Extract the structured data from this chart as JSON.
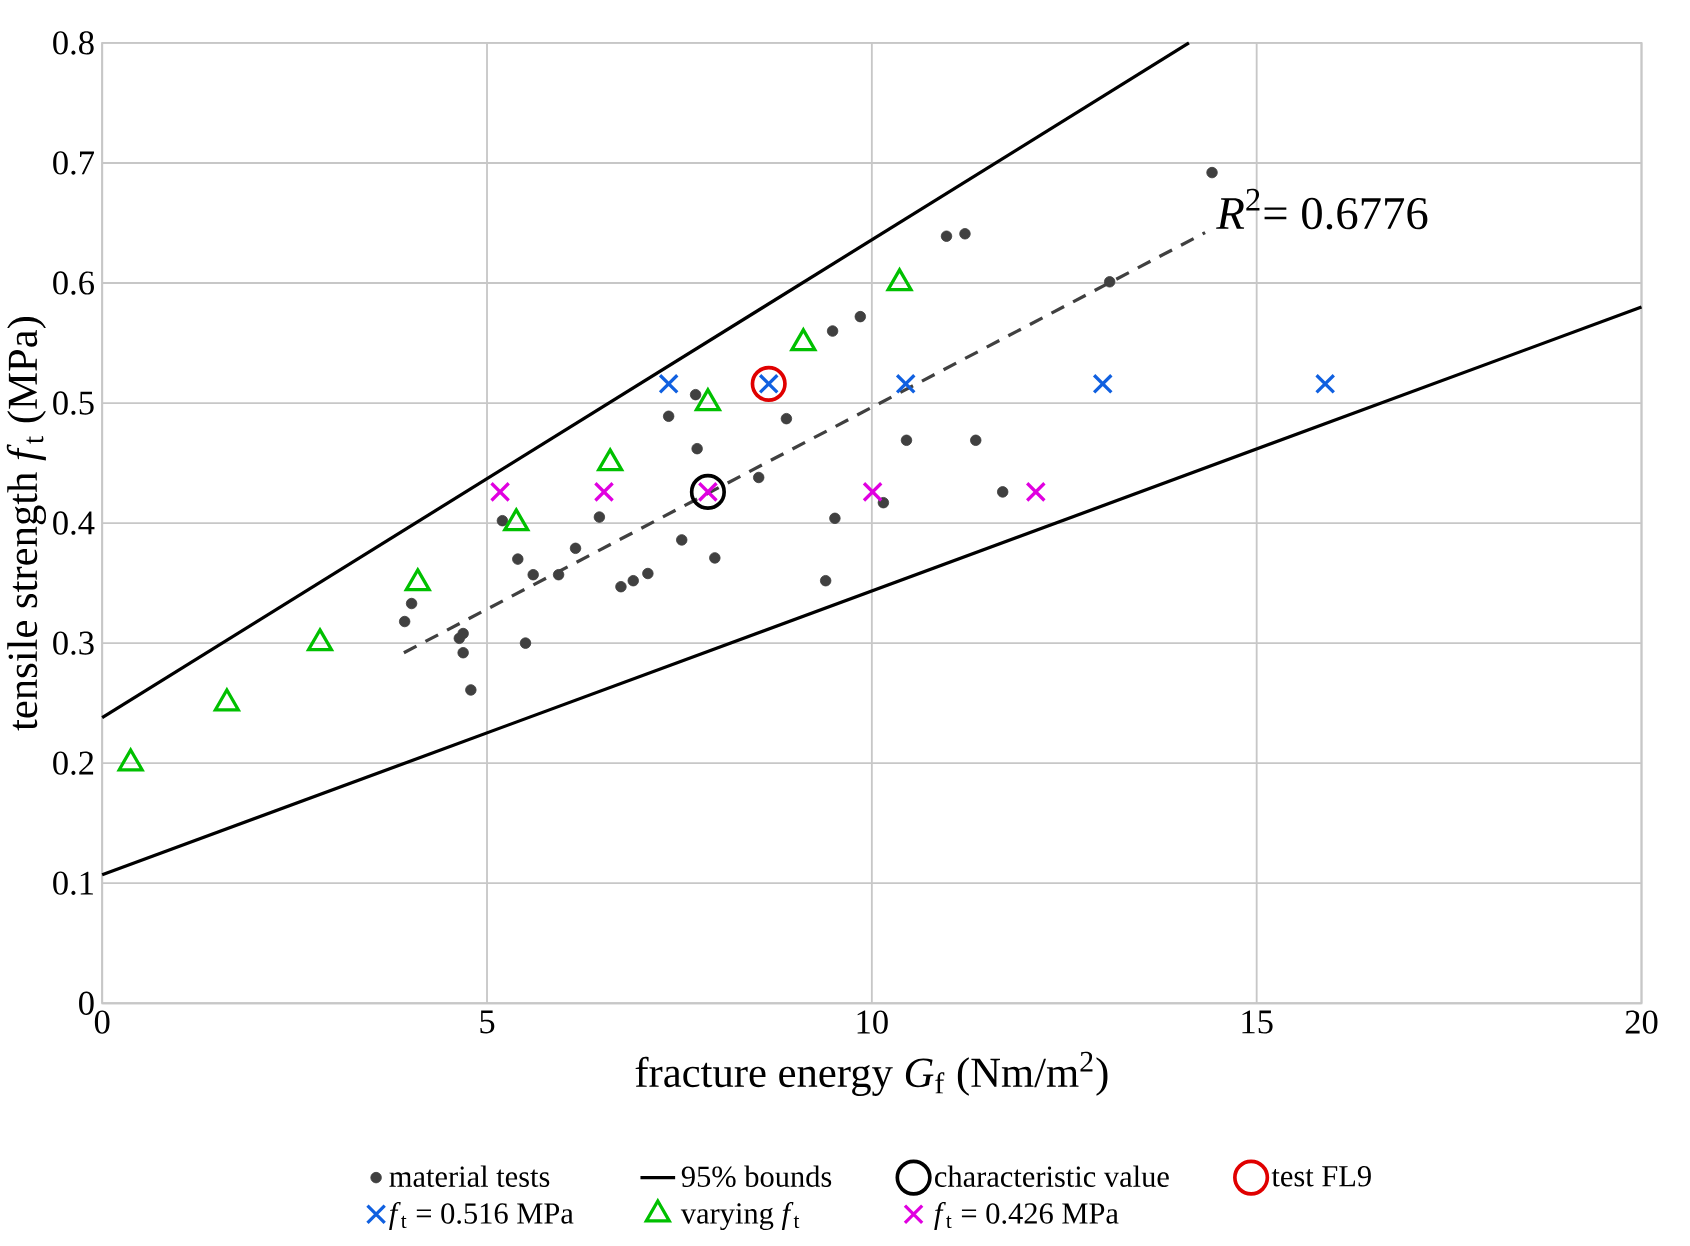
{
  "chart_data": {
    "type": "scatter",
    "xlabel": "fracture energy *G*$_{f}$ (Nm/m$^{2}$)",
    "ylabel": "tensile strength *f*$_{t}$ (MPa)",
    "xlim": [
      0,
      20
    ],
    "ylim": [
      0,
      0.8
    ],
    "xticks": [
      0,
      5,
      10,
      15,
      20
    ],
    "yticks": [
      0,
      0.1,
      0.2,
      0.3,
      0.4,
      0.5,
      0.6,
      0.7,
      0.8
    ],
    "grid": true,
    "legend": "bottom",
    "annotations": [
      "*R*$^{2}$= 0.6776"
    ],
    "series": [
      {
        "name": "material tests",
        "marker": "circle",
        "color": "#404040",
        "x": [
          3.93,
          4.02,
          4.64,
          4.69,
          4.69,
          4.79,
          5.2,
          5.4,
          5.5,
          5.6,
          5.93,
          6.15,
          6.46,
          6.74,
          6.9,
          7.09,
          7.36,
          7.53,
          7.71,
          7.73,
          7.96,
          8.53,
          8.89,
          9.4,
          9.49,
          9.52,
          9.85,
          10.15,
          10.45,
          10.97,
          11.21,
          11.35,
          11.7,
          13.09,
          14.42
        ],
        "values": [
          0.318,
          0.333,
          0.304,
          0.308,
          0.292,
          0.261,
          0.402,
          0.37,
          0.3,
          0.357,
          0.357,
          0.379,
          0.405,
          0.347,
          0.352,
          0.358,
          0.489,
          0.386,
          0.507,
          0.462,
          0.371,
          0.438,
          0.487,
          0.352,
          0.56,
          0.404,
          0.572,
          0.417,
          0.469,
          0.639,
          0.641,
          0.469,
          0.426,
          0.601,
          0.692
        ]
      },
      {
        "name": "95% bounds",
        "type": "line",
        "line_style": "solid",
        "color": "#000000",
        "x": [
          0,
          14.12
        ],
        "values": [
          0.238,
          0.8
        ]
      },
      {
        "name": "characteristic value",
        "marker": "circle",
        "color": "#000000",
        "x": [
          7.87
        ],
        "values": [
          0.426
        ]
      },
      {
        "name": "test FL9",
        "marker": "circle",
        "color": "#e00000",
        "x": [
          8.66
        ],
        "values": [
          0.516
        ]
      },
      {
        "name": "*f*$_{t}$ = 0.516 MPa",
        "marker": "cross",
        "color": "#1060e0",
        "x": [
          7.36,
          8.66,
          10.44,
          13.0,
          15.89
        ],
        "values": [
          0.516,
          0.516,
          0.516,
          0.516,
          0.516
        ]
      },
      {
        "name": "varying *f*$_{t}$",
        "marker": "triangle",
        "color": "#00c000",
        "x": [
          0.37,
          1.62,
          2.83,
          4.1,
          5.38,
          6.6,
          7.87,
          9.11,
          10.36
        ],
        "values": [
          0.2,
          0.25,
          0.3,
          0.35,
          0.4,
          0.45,
          0.5,
          0.55,
          0.6
        ]
      },
      {
        "name": "*f*$_{t}$ = 0.426 MPa",
        "marker": "cross",
        "color": "#e000e0",
        "x": [
          5.17,
          6.52,
          7.87,
          10.01,
          12.13
        ],
        "values": [
          0.426,
          0.426,
          0.426,
          0.426,
          0.426
        ]
      },
      {
        "type": "line",
        "line_style": "solid",
        "color": "#000000",
        "x": [
          0,
          20
        ],
        "values": [
          0.107,
          0.58
        ]
      },
      {
        "type": "line",
        "line_style": "dashed",
        "color": "#404040",
        "x": [
          3.92,
          14.33
        ],
        "values": [
          0.292,
          0.642
        ]
      }
    ]
  }
}
